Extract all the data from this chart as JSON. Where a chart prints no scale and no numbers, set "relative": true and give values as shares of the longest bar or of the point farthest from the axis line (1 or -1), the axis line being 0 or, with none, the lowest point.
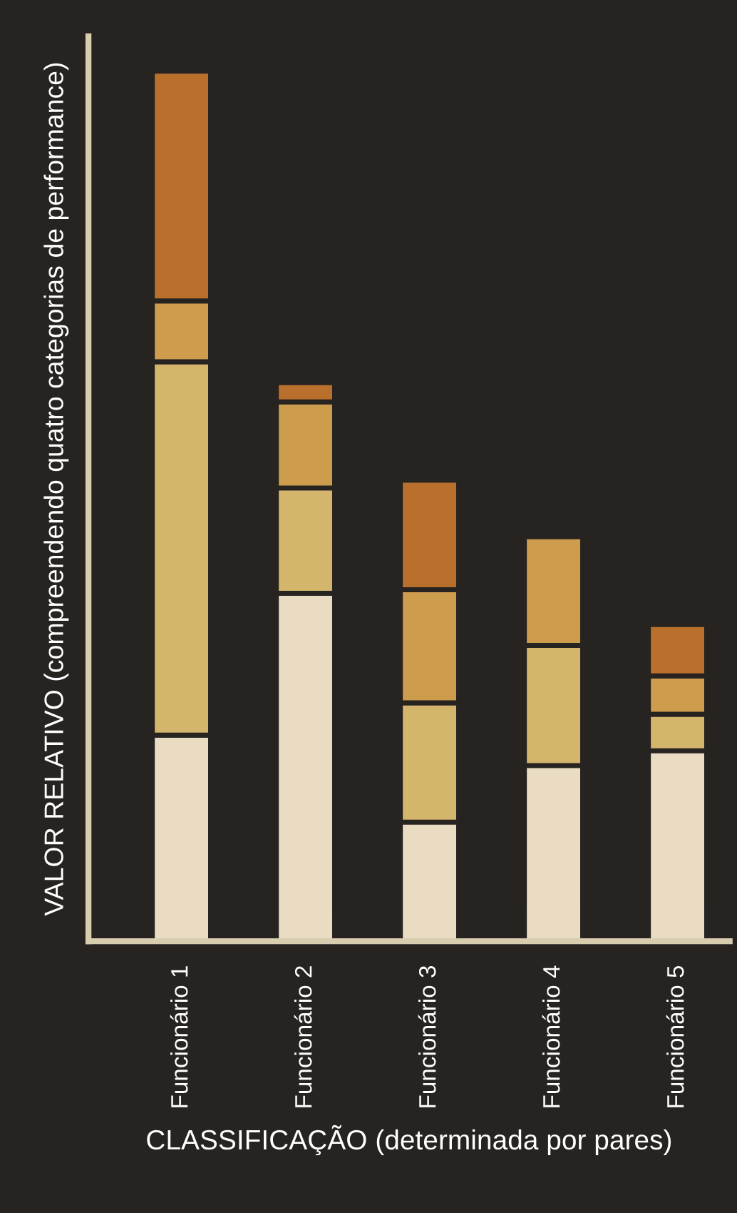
{
  "chart_data": {
    "type": "bar",
    "stacked": true,
    "relative": true,
    "xlabel": "CLASSIFICAÇÃO (determinada por pares)",
    "ylabel": "VALOR RELATIVO (compreendendo quatro categorias de performance)",
    "categories": [
      "Funcionário 1",
      "Funcionário 2",
      "Funcionário 3",
      "Funcionário 4",
      "Funcionário 5"
    ],
    "series": [
      {
        "color": "#e9dcc3",
        "values": [
          0.237,
          0.4,
          0.137,
          0.202,
          0.219
        ]
      },
      {
        "color": "#d4b56c",
        "values": [
          0.429,
          0.121,
          0.137,
          0.138,
          0.042
        ]
      },
      {
        "color": "#cd9c4c",
        "values": [
          0.07,
          0.099,
          0.13,
          0.125,
          0.044
        ]
      },
      {
        "color": "#b8702c",
        "values": [
          0.264,
          0.022,
          0.126,
          null,
          0.059
        ]
      }
    ],
    "grid": false,
    "legend": false
  }
}
